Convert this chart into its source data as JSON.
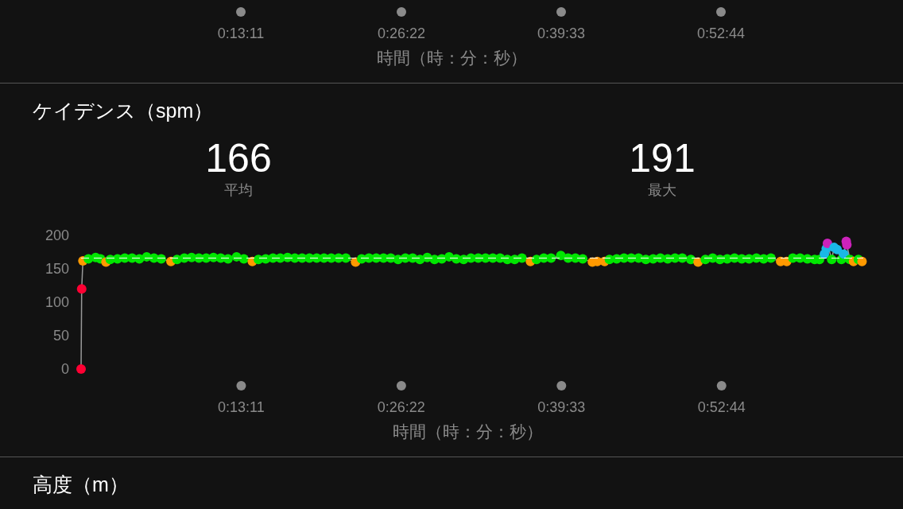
{
  "chart_data": {
    "type": "line",
    "title": "ケイデンス（spm）",
    "xlabel": "時間（時：分：秒）",
    "annotations": [
      "166",
      "平均",
      "191",
      "最大",
      "0:13:11",
      "0:26:22",
      "0:39:33",
      "0:52:44",
      "時間（時：分：秒）",
      "高度（m）"
    ],
    "xlim": [
      0,
      64.4
    ],
    "xticks": [
      {
        "value": 13.183,
        "label": "0:13:11"
      },
      {
        "value": 26.367,
        "label": "0:26:22"
      },
      {
        "value": 39.55,
        "label": "0:39:33"
      },
      {
        "value": 52.733,
        "label": "0:52:44"
      }
    ],
    "ylim": [
      0,
      200
    ],
    "yticks": [
      0,
      50,
      100,
      150,
      200
    ],
    "marker": "circle",
    "ref_lines": [
      {
        "axis": "y",
        "value": 166,
        "color": "#ffffff",
        "line_style": "dashed"
      }
    ],
    "series": [
      {
        "color": "#999999",
        "x": [
          0,
          0.05,
          0.15,
          0.6,
          1.2,
          1.6,
          2.05,
          2.4,
          3.0,
          3.6,
          4.2,
          4.8,
          5.4,
          6.0,
          6.6,
          7.4,
          7.9,
          8.5,
          9.1,
          9.7,
          10.3,
          10.9,
          11.5,
          12.1,
          12.8,
          13.4,
          14.1,
          14.6,
          15.2,
          15.8,
          16.4,
          17.0,
          17.6,
          18.2,
          18.8,
          19.4,
          20.0,
          20.6,
          21.2,
          21.8,
          22.6,
          23.1,
          23.7,
          24.3,
          24.9,
          25.5,
          26.1,
          26.7,
          27.3,
          27.9,
          28.5,
          29.1,
          29.7,
          30.3,
          30.9,
          31.5,
          32.1,
          32.7,
          33.3,
          33.9,
          34.5,
          35.1,
          35.7,
          36.3,
          37.0,
          37.5,
          38.1,
          38.7,
          39.5,
          40.1,
          40.7,
          41.3,
          42.1,
          42.5,
          43.1,
          43.5,
          44.1,
          44.7,
          45.3,
          45.9,
          46.5,
          47.1,
          47.7,
          48.3,
          48.9,
          49.5,
          50.2,
          50.8,
          51.4,
          52.0,
          52.6,
          53.2,
          53.8,
          54.4,
          55.0,
          55.6,
          56.2,
          56.8,
          57.6,
          58.1,
          58.6,
          59.2,
          59.8,
          60.4,
          60.8,
          61.2,
          61.35,
          61.45,
          61.8,
          62.0,
          62.25,
          62.6,
          62.8,
          63.0,
          63.05,
          63.3,
          63.6,
          64.0,
          64.3
        ],
        "values": [
          0,
          120,
          162,
          165,
          167,
          165,
          160,
          164,
          165,
          166,
          166,
          165,
          168,
          166,
          165,
          161,
          164,
          166,
          167,
          166,
          166,
          167,
          166,
          165,
          168,
          165,
          161,
          164,
          165,
          166,
          166,
          167,
          166,
          166,
          166,
          166,
          166,
          166,
          166,
          166,
          160,
          165,
          166,
          166,
          166,
          166,
          164,
          166,
          166,
          164,
          167,
          164,
          165,
          168,
          165,
          164,
          166,
          166,
          166,
          166,
          166,
          164,
          164,
          166,
          161,
          164,
          166,
          166,
          170,
          166,
          166,
          165,
          160,
          161,
          161,
          164,
          165,
          166,
          166,
          166,
          164,
          165,
          166,
          165,
          166,
          166,
          164,
          160,
          164,
          166,
          164,
          165,
          166,
          165,
          165,
          166,
          165,
          166,
          161,
          161,
          166,
          166,
          165,
          164,
          164,
          172,
          180,
          188,
          164,
          182,
          179,
          164,
          172,
          191,
          186,
          164,
          161,
          164,
          161
        ],
        "colors": [
          "#ff0033",
          "#ff0033",
          "#ff9900",
          "#00e600",
          "#00e600",
          "#00e600",
          "#ff9900",
          "#00e600",
          "#00e600",
          "#00e600",
          "#00e600",
          "#00e600",
          "#00e600",
          "#00e600",
          "#00e600",
          "#ff9900",
          "#00e600",
          "#00e600",
          "#00e600",
          "#00e600",
          "#00e600",
          "#00e600",
          "#00e600",
          "#00e600",
          "#00e600",
          "#00e600",
          "#ff9900",
          "#00e600",
          "#00e600",
          "#00e600",
          "#00e600",
          "#00e600",
          "#00e600",
          "#00e600",
          "#00e600",
          "#00e600",
          "#00e600",
          "#00e600",
          "#00e600",
          "#00e600",
          "#ff9900",
          "#00e600",
          "#00e600",
          "#00e600",
          "#00e600",
          "#00e600",
          "#00e600",
          "#00e600",
          "#00e600",
          "#00e600",
          "#00e600",
          "#00e600",
          "#00e600",
          "#00e600",
          "#00e600",
          "#00e600",
          "#00e600",
          "#00e600",
          "#00e600",
          "#00e600",
          "#00e600",
          "#00e600",
          "#00e600",
          "#00e600",
          "#ff9900",
          "#00e600",
          "#00e600",
          "#00e600",
          "#00e600",
          "#00e600",
          "#00e600",
          "#00e600",
          "#ff9900",
          "#ff9900",
          "#ff9900",
          "#00e600",
          "#00e600",
          "#00e600",
          "#00e600",
          "#00e600",
          "#00e600",
          "#00e600",
          "#00e600",
          "#00e600",
          "#00e600",
          "#00e600",
          "#00e600",
          "#ff9900",
          "#00e600",
          "#00e600",
          "#00e600",
          "#00e600",
          "#00e600",
          "#00e600",
          "#00e600",
          "#00e600",
          "#00e600",
          "#00e600",
          "#ff9900",
          "#ff9900",
          "#00e600",
          "#00e600",
          "#00e600",
          "#00e600",
          "#00e600",
          "#1ab8e6",
          "#1ab8e6",
          "#cc22bb",
          "#00e600",
          "#1ab8e6",
          "#1ab8e6",
          "#00e600",
          "#1ab8e6",
          "#cc22bb",
          "#cc22bb",
          "#00e600",
          "#ff9900",
          "#00e600",
          "#ff9900"
        ]
      }
    ]
  }
}
